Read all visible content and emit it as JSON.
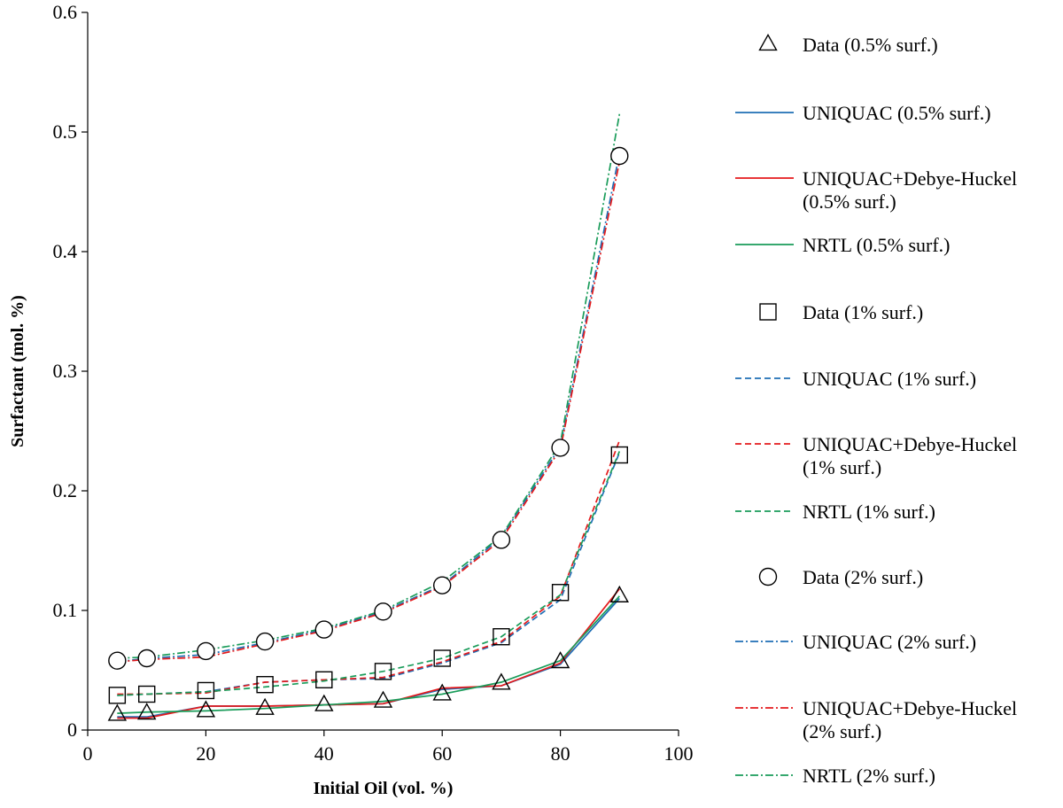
{
  "chart_data": {
    "type": "line",
    "title": "",
    "xlabel": "Initial Oil (vol. %)",
    "ylabel": "Surfactant (mol. %)",
    "xlim": [
      0,
      100
    ],
    "ylim": [
      0,
      0.6
    ],
    "x_ticks": [
      0,
      20,
      40,
      60,
      80,
      100
    ],
    "y_ticks": [
      0,
      0.1,
      0.2,
      0.3,
      0.4,
      0.5,
      0.6
    ],
    "x_tick_labels": [
      "0",
      "20",
      "40",
      "60",
      "80",
      "100"
    ],
    "y_tick_labels": [
      "0",
      "0.1",
      "0.2",
      "0.3",
      "0.4",
      "0.5",
      "0.6"
    ],
    "grid": false,
    "legend_position": "right",
    "colors": {
      "uniquac": "#1f6fb5",
      "debye": "#e41a1c",
      "nrtl": "#1a9c5a",
      "data": "#000000"
    },
    "series": [
      {
        "name": "Data (0.5% surf.)",
        "label_lines": [
          "Data (0.5% surf.)"
        ],
        "kind": "marker",
        "marker": "triangle",
        "color": "data",
        "x": [
          5,
          10,
          20,
          30,
          40,
          50,
          60,
          70,
          80,
          90
        ],
        "y": [
          0.013,
          0.014,
          0.016,
          0.018,
          0.021,
          0.024,
          0.03,
          0.039,
          0.057,
          0.112
        ]
      },
      {
        "name": "UNIQUAC (0.5% surf.)",
        "label_lines": [
          "UNIQUAC (0.5% surf.)"
        ],
        "kind": "line",
        "dash": "solid",
        "color": "uniquac",
        "x": [
          5,
          10,
          20,
          30,
          40,
          50,
          60,
          70,
          80,
          90
        ],
        "y": [
          0.011,
          0.011,
          0.02,
          0.02,
          0.021,
          0.022,
          0.034,
          0.037,
          0.055,
          0.11
        ]
      },
      {
        "name": "UNIQUAC+Debye-Huckel (0.5% surf.)",
        "label_lines": [
          "UNIQUAC+Debye-Huckel",
          "(0.5% surf.)"
        ],
        "kind": "line",
        "dash": "solid",
        "color": "debye",
        "x": [
          5,
          10,
          20,
          30,
          40,
          50,
          60,
          70,
          80,
          90
        ],
        "y": [
          0.01,
          0.01,
          0.02,
          0.02,
          0.021,
          0.022,
          0.035,
          0.037,
          0.056,
          0.118
        ]
      },
      {
        "name": "NRTL (0.5% surf.)",
        "label_lines": [
          "NRTL (0.5% surf.)"
        ],
        "kind": "line",
        "dash": "solid",
        "color": "nrtl",
        "x": [
          5,
          10,
          20,
          30,
          40,
          50,
          60,
          70,
          80,
          90
        ],
        "y": [
          0.014,
          0.015,
          0.016,
          0.018,
          0.021,
          0.024,
          0.03,
          0.04,
          0.058,
          0.112
        ]
      },
      {
        "name": "Data (1% surf.)",
        "label_lines": [
          "Data (1% surf.)"
        ],
        "kind": "marker",
        "marker": "square",
        "color": "data",
        "x": [
          5,
          10,
          20,
          30,
          40,
          50,
          60,
          70,
          80,
          90
        ],
        "y": [
          0.029,
          0.03,
          0.033,
          0.038,
          0.042,
          0.049,
          0.06,
          0.078,
          0.115,
          0.23
        ]
      },
      {
        "name": "UNIQUAC (1% surf.)",
        "label_lines": [
          "UNIQUAC (1% surf.)"
        ],
        "kind": "line",
        "dash": "dash",
        "color": "uniquac",
        "x": [
          5,
          10,
          20,
          30,
          40,
          50,
          60,
          70,
          80,
          90
        ],
        "y": [
          0.029,
          0.03,
          0.032,
          0.04,
          0.042,
          0.043,
          0.056,
          0.073,
          0.109,
          0.232
        ]
      },
      {
        "name": "UNIQUAC+Debye-Huckel (1% surf.)",
        "label_lines": [
          "UNIQUAC+Debye-Huckel",
          "(1% surf.)"
        ],
        "kind": "line",
        "dash": "dash",
        "color": "debye",
        "x": [
          5,
          10,
          20,
          30,
          40,
          50,
          60,
          70,
          80,
          90
        ],
        "y": [
          0.03,
          0.03,
          0.031,
          0.04,
          0.042,
          0.044,
          0.057,
          0.074,
          0.112,
          0.242
        ]
      },
      {
        "name": "NRTL (1% surf.)",
        "label_lines": [
          "NRTL (1% surf.)"
        ],
        "kind": "line",
        "dash": "dash",
        "color": "nrtl",
        "x": [
          5,
          10,
          20,
          30,
          40,
          50,
          60,
          70,
          80,
          90
        ],
        "y": [
          0.029,
          0.03,
          0.032,
          0.036,
          0.041,
          0.049,
          0.06,
          0.078,
          0.113,
          0.233
        ]
      },
      {
        "name": "Data (2% surf.)",
        "label_lines": [
          "Data (2% surf.)"
        ],
        "kind": "marker",
        "marker": "circle",
        "color": "data",
        "x": [
          5,
          10,
          20,
          30,
          40,
          50,
          60,
          70,
          80,
          90
        ],
        "y": [
          0.058,
          0.06,
          0.066,
          0.074,
          0.084,
          0.099,
          0.121,
          0.159,
          0.236,
          0.48
        ]
      },
      {
        "name": "UNIQUAC (2% surf.)",
        "label_lines": [
          "UNIQUAC (2% surf.)"
        ],
        "kind": "line",
        "dash": "dashdot",
        "color": "uniquac",
        "x": [
          5,
          10,
          20,
          30,
          40,
          50,
          60,
          70,
          80,
          90
        ],
        "y": [
          0.057,
          0.06,
          0.063,
          0.073,
          0.084,
          0.099,
          0.121,
          0.161,
          0.237,
          0.482
        ]
      },
      {
        "name": "UNIQUAC+Debye-Huckel (2% surf.)",
        "label_lines": [
          "UNIQUAC+Debye-Huckel",
          "(2% surf.)"
        ],
        "kind": "line",
        "dash": "dashdot",
        "color": "debye",
        "x": [
          5,
          10,
          20,
          30,
          40,
          50,
          60,
          70,
          80,
          90
        ],
        "y": [
          0.057,
          0.059,
          0.061,
          0.072,
          0.083,
          0.098,
          0.12,
          0.159,
          0.235,
          0.475
        ]
      },
      {
        "name": "NRTL (2% surf.)",
        "label_lines": [
          "NRTL (2% surf.)"
        ],
        "kind": "line",
        "dash": "dashdot",
        "color": "nrtl",
        "x": [
          5,
          10,
          20,
          30,
          40,
          50,
          60,
          70,
          80,
          90
        ],
        "y": [
          0.06,
          0.061,
          0.067,
          0.075,
          0.085,
          0.1,
          0.124,
          0.162,
          0.24,
          0.515
        ]
      }
    ]
  }
}
